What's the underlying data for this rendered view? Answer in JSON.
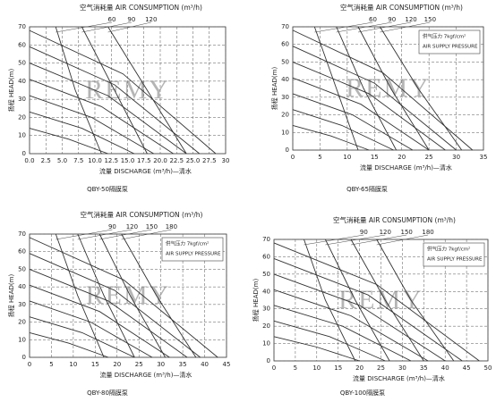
{
  "chart_data": [
    {
      "type": "line",
      "title": "空气消耗量 AIR CONSUMPTION (m³/h)",
      "x_label": "流量 DISCHARGE (m³/h)—清水",
      "y_label": "扬程 HEAD(m)",
      "caption": "QBY-50隔膜泵",
      "watermark": "REMY",
      "xlim": [
        0,
        30
      ],
      "ylim": [
        0,
        70
      ],
      "xticks": [
        {
          "value": 0,
          "label": "0.0"
        },
        {
          "value": 2.5,
          "label": "2.5"
        },
        {
          "value": 5,
          "label": "5.0"
        },
        {
          "value": 7.5,
          "label": "7.5"
        },
        {
          "value": 10,
          "label": "10.0"
        },
        {
          "value": 12.5,
          "label": "12.5"
        },
        {
          "value": 15,
          "label": "15.0"
        },
        {
          "value": 17.5,
          "label": "17.5"
        },
        {
          "value": 20,
          "label": "20.0"
        },
        {
          "value": 22.5,
          "label": "22.5"
        },
        {
          "value": 25,
          "label": "25.0"
        },
        {
          "value": 27.5,
          "label": "27.5"
        },
        30
      ],
      "yticks": [
        0,
        10,
        20,
        30,
        40,
        50,
        60,
        70
      ],
      "grid": true,
      "series": [
        {
          "color": "#333333",
          "x": [
            0,
            14.3,
            28.5
          ],
          "values": [
            68,
            44,
            0
          ]
        },
        {
          "color": "#333333",
          "x": [
            0,
            13,
            26
          ],
          "values": [
            59,
            38,
            0
          ]
        },
        {
          "color": "#333333",
          "x": [
            0,
            12,
            24
          ],
          "values": [
            50,
            32,
            0
          ]
        },
        {
          "color": "#333333",
          "x": [
            0,
            11,
            22
          ],
          "values": [
            41,
            26,
            0
          ]
        },
        {
          "color": "#333333",
          "x": [
            0,
            9.5,
            19
          ],
          "values": [
            32,
            20,
            0
          ]
        },
        {
          "color": "#333333",
          "x": [
            0,
            8,
            16
          ],
          "values": [
            23,
            14,
            0
          ]
        },
        {
          "color": "#333333",
          "x": [
            0,
            6,
            12
          ],
          "values": [
            14,
            8,
            0
          ]
        },
        {
          "name": "60",
          "color": "#333333",
          "x": [
            4,
            7,
            11
          ],
          "values": [
            70,
            35,
            0
          ]
        },
        {
          "name": "90",
          "color": "#333333",
          "x": [
            8,
            13,
            18
          ],
          "values": [
            70,
            35,
            0
          ]
        },
        {
          "name": "120",
          "color": "#333333",
          "x": [
            12,
            18,
            24
          ],
          "values": [
            70,
            35,
            0
          ]
        }
      ]
    },
    {
      "type": "line",
      "title": "空气消耗量 AIR CONSUMPTION (m³/h)",
      "x_label": "流量 DISCHARGE (m³/h)—清水",
      "y_label": "扬程 HEAD(m)",
      "caption": "QBY-65隔膜泵",
      "watermark": "REMY",
      "annotations": [
        "供气压力 7kgf/cm²",
        "AIR SUPPLY PRESSURE"
      ],
      "xlim": [
        0,
        35
      ],
      "ylim": [
        0,
        70
      ],
      "xticks": [
        0,
        5,
        10,
        15,
        20,
        25,
        30,
        35
      ],
      "yticks": [
        0,
        10,
        20,
        30,
        40,
        50,
        60,
        70
      ],
      "grid": true,
      "series": [
        {
          "color": "#333333",
          "x": [
            0,
            16.5,
            33
          ],
          "values": [
            68,
            44,
            0
          ]
        },
        {
          "color": "#333333",
          "x": [
            0,
            15,
            30
          ],
          "values": [
            59,
            38,
            0
          ]
        },
        {
          "color": "#333333",
          "x": [
            0,
            14,
            28
          ],
          "values": [
            50,
            32,
            0
          ]
        },
        {
          "color": "#333333",
          "x": [
            0,
            12.5,
            25
          ],
          "values": [
            41,
            26,
            0
          ]
        },
        {
          "color": "#333333",
          "x": [
            0,
            11,
            22
          ],
          "values": [
            32,
            20,
            0
          ]
        },
        {
          "color": "#333333",
          "x": [
            0,
            9,
            18.5
          ],
          "values": [
            23,
            14,
            0
          ]
        },
        {
          "color": "#333333",
          "x": [
            0,
            7,
            14
          ],
          "values": [
            14,
            8,
            0
          ]
        },
        {
          "name": "60",
          "color": "#333333",
          "x": [
            4,
            8,
            12
          ],
          "values": [
            70,
            35,
            0
          ]
        },
        {
          "name": "90",
          "color": "#333333",
          "x": [
            8,
            13,
            19
          ],
          "values": [
            70,
            35,
            0
          ]
        },
        {
          "name": "120",
          "color": "#333333",
          "x": [
            12,
            18,
            25
          ],
          "values": [
            70,
            35,
            0
          ]
        },
        {
          "name": "150",
          "color": "#333333",
          "x": [
            16,
            23,
            31
          ],
          "values": [
            70,
            35,
            0
          ]
        }
      ]
    },
    {
      "type": "line",
      "title": "空气消耗量 AIR CONSUMPTION (m³/h)",
      "x_label": "流量 DISCHARGE (m³/h)—清水",
      "y_label": "扬程 HEAD(m)",
      "caption": "QBY-80隔膜泵",
      "watermark": "REMY",
      "annotations": [
        "供气压力 7kgf/cm²",
        "AIR SUPPLY PRESSURE"
      ],
      "xlim": [
        0,
        45
      ],
      "ylim": [
        0,
        70
      ],
      "xticks": [
        0,
        5,
        10,
        15,
        20,
        25,
        30,
        35,
        40,
        45
      ],
      "yticks": [
        0,
        10,
        20,
        30,
        40,
        50,
        60,
        70
      ],
      "grid": true,
      "series": [
        {
          "color": "#333333",
          "x": [
            0,
            21.5,
            43
          ],
          "values": [
            68,
            44,
            0
          ]
        },
        {
          "color": "#333333",
          "x": [
            0,
            19.5,
            39
          ],
          "values": [
            59,
            38,
            0
          ]
        },
        {
          "color": "#333333",
          "x": [
            0,
            18,
            36
          ],
          "values": [
            50,
            32,
            0
          ]
        },
        {
          "color": "#333333",
          "x": [
            0,
            16,
            32
          ],
          "values": [
            41,
            26,
            0
          ]
        },
        {
          "color": "#333333",
          "x": [
            0,
            14,
            28
          ],
          "values": [
            32,
            20,
            0
          ]
        },
        {
          "color": "#333333",
          "x": [
            0,
            12,
            24
          ],
          "values": [
            23,
            14,
            0
          ]
        },
        {
          "color": "#333333",
          "x": [
            0,
            9,
            18
          ],
          "values": [
            14,
            8,
            0
          ]
        },
        {
          "name": "90",
          "color": "#333333",
          "x": [
            6,
            11,
            17
          ],
          "values": [
            70,
            35,
            0
          ]
        },
        {
          "name": "120",
          "color": "#333333",
          "x": [
            11,
            17,
            24
          ],
          "values": [
            70,
            35,
            0
          ]
        },
        {
          "name": "150",
          "color": "#333333",
          "x": [
            16,
            23,
            31
          ],
          "values": [
            70,
            35,
            0
          ]
        },
        {
          "name": "180",
          "color": "#333333",
          "x": [
            21,
            29,
            38
          ],
          "values": [
            70,
            35,
            0
          ]
        }
      ]
    },
    {
      "type": "line",
      "title": "空气消耗量 AIR CONSUMPTION (m³/h)",
      "x_label": "流量 DISCHARGE (m³/h)—清水",
      "y_label": "扬程 HEAD(m)",
      "caption": "QBY-100隔膜泵",
      "watermark": "REMY",
      "annotations": [
        "供气压力 7kgf/cm²",
        "AIR SUPPLY PRESSURE"
      ],
      "xlim": [
        0,
        50
      ],
      "ylim": [
        0,
        70
      ],
      "xticks": [
        0,
        5,
        10,
        15,
        20,
        25,
        30,
        35,
        40,
        45,
        50
      ],
      "yticks": [
        0,
        10,
        20,
        30,
        40,
        50,
        60,
        70
      ],
      "grid": true,
      "series": [
        {
          "color": "#333333",
          "x": [
            0,
            24,
            48
          ],
          "values": [
            68,
            44,
            0
          ]
        },
        {
          "color": "#333333",
          "x": [
            0,
            22,
            44
          ],
          "values": [
            59,
            38,
            0
          ]
        },
        {
          "color": "#333333",
          "x": [
            0,
            20,
            40
          ],
          "values": [
            50,
            32,
            0
          ]
        },
        {
          "color": "#333333",
          "x": [
            0,
            18,
            36
          ],
          "values": [
            41,
            26,
            0
          ]
        },
        {
          "color": "#333333",
          "x": [
            0,
            16,
            32
          ],
          "values": [
            32,
            20,
            0
          ]
        },
        {
          "color": "#333333",
          "x": [
            0,
            13,
            26
          ],
          "values": [
            23,
            14,
            0
          ]
        },
        {
          "color": "#333333",
          "x": [
            0,
            10,
            20
          ],
          "values": [
            14,
            8,
            0
          ]
        },
        {
          "name": "90",
          "color": "#333333",
          "x": [
            7,
            12,
            19
          ],
          "values": [
            70,
            35,
            0
          ]
        },
        {
          "name": "120",
          "color": "#333333",
          "x": [
            12,
            19,
            27
          ],
          "values": [
            70,
            35,
            0
          ]
        },
        {
          "name": "150",
          "color": "#333333",
          "x": [
            18,
            26,
            35
          ],
          "values": [
            70,
            35,
            0
          ]
        },
        {
          "name": "180",
          "color": "#333333",
          "x": [
            24,
            32,
            42
          ],
          "values": [
            70,
            35,
            0
          ]
        }
      ]
    }
  ]
}
